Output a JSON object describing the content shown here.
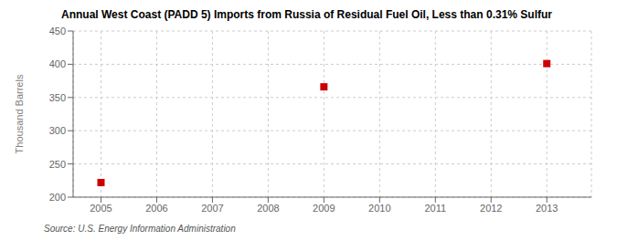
{
  "chart_data": {
    "type": "scatter",
    "title": "Annual West Coast (PADD 5) Imports from Russia of Residual Fuel Oil, Less than 0.31% Sulfur",
    "ylabel": "Thousand Barrels",
    "annotations": [
      "Source: U.S. Energy Information Administration"
    ],
    "x": [
      2005,
      2009,
      2013
    ],
    "values": [
      222,
      366,
      401
    ],
    "color": "#cc0000",
    "marker": "square",
    "xlim": [
      2004.5,
      2013.8
    ],
    "ylim": [
      200,
      450
    ],
    "xticks": [
      2005,
      2006,
      2007,
      2008,
      2009,
      2010,
      2011,
      2012,
      2013
    ],
    "yticks": [
      200,
      250,
      300,
      350,
      400,
      450
    ],
    "grid": true
  }
}
